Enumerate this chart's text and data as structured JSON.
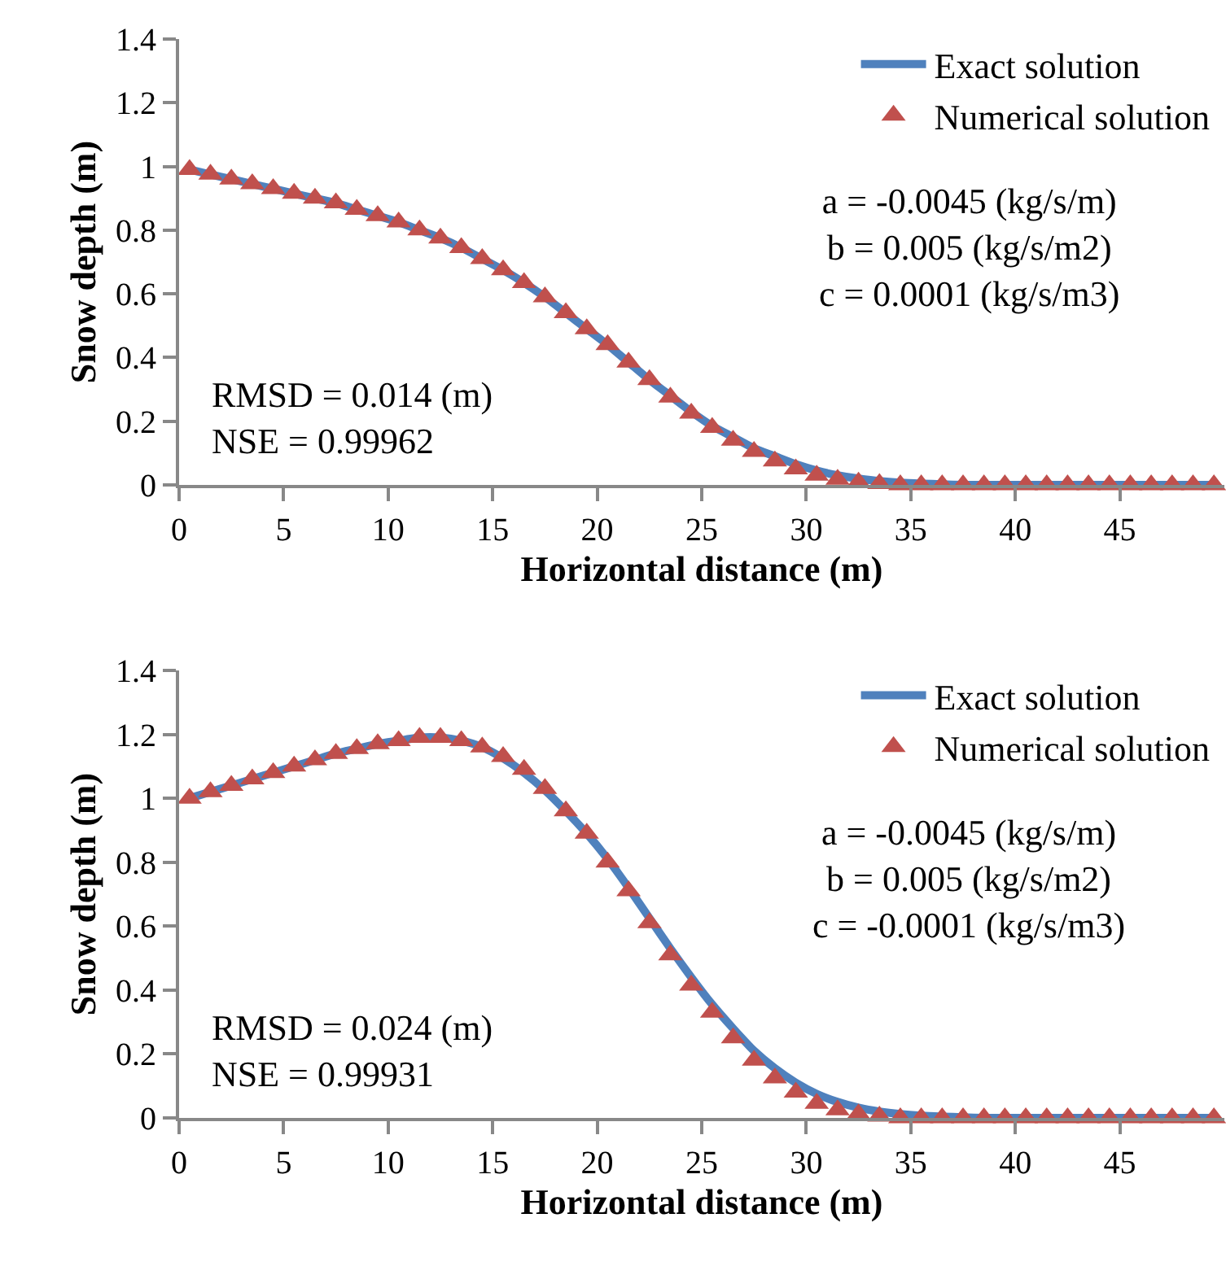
{
  "chart_data": [
    {
      "type": "line",
      "xlabel": "Horizontal distance (m)",
      "ylabel": "Snow depth (m)",
      "x": [
        0.5,
        1.5,
        2.5,
        3.5,
        4.5,
        5.5,
        6.5,
        7.5,
        8.5,
        9.5,
        10.5,
        11.5,
        12.5,
        13.5,
        14.5,
        15.5,
        16.5,
        17.5,
        18.5,
        19.5,
        20.5,
        21.5,
        22.5,
        23.5,
        24.5,
        25.5,
        26.5,
        27.5,
        28.5,
        29.5,
        30.5,
        31.5,
        32.5,
        33.5,
        34.5,
        35.5,
        36.5,
        37.5,
        38.5,
        39.5,
        40.5,
        41.5,
        42.5,
        43.5,
        44.5,
        45.5,
        46.5,
        47.5,
        48.5,
        49.5
      ],
      "xlim": [
        0,
        50
      ],
      "xticks": [
        0,
        5,
        10,
        15,
        20,
        25,
        30,
        35,
        40,
        45
      ],
      "ylim": [
        0,
        1.4
      ],
      "yticks": [
        0,
        0.2,
        0.4,
        0.6,
        0.8,
        1,
        1.2,
        1.4
      ],
      "legend": "top right",
      "series": [
        {
          "name": "Exact solution",
          "color": "#4f81bd",
          "line_style": "solid",
          "values": [
            0.99,
            0.975,
            0.96,
            0.945,
            0.93,
            0.915,
            0.9,
            0.885,
            0.865,
            0.845,
            0.825,
            0.8,
            0.775,
            0.745,
            0.71,
            0.675,
            0.635,
            0.59,
            0.54,
            0.49,
            0.44,
            0.385,
            0.33,
            0.28,
            0.23,
            0.185,
            0.15,
            0.115,
            0.09,
            0.065,
            0.045,
            0.03,
            0.02,
            0.012,
            0.007,
            0.004,
            0.002,
            0,
            0,
            0,
            0,
            0,
            0,
            0,
            0,
            0,
            0,
            0,
            0,
            0
          ]
        },
        {
          "name": "Numerical solution",
          "type": "scatter",
          "marker": "triangle",
          "color": "#c0504d",
          "values": [
            0.99,
            0.975,
            0.96,
            0.945,
            0.93,
            0.915,
            0.9,
            0.885,
            0.865,
            0.845,
            0.825,
            0.8,
            0.775,
            0.745,
            0.71,
            0.675,
            0.635,
            0.59,
            0.54,
            0.49,
            0.44,
            0.385,
            0.33,
            0.275,
            0.225,
            0.18,
            0.14,
            0.105,
            0.075,
            0.05,
            0.03,
            0.017,
            0.008,
            0.004,
            0,
            0,
            0,
            0,
            0,
            0,
            0,
            0,
            0,
            0,
            0,
            0,
            0,
            0,
            0,
            0
          ]
        }
      ],
      "annotations": [
        "a = -0.0045 (kg/s/m)\nb = 0.005 (kg/s/m2)\nc = 0.0001 (kg/s/m3)",
        "RMSD = 0.014 (m)\nNSE = 0.99962"
      ]
    },
    {
      "type": "line",
      "xlabel": "Horizontal distance (m)",
      "ylabel": "Snow depth (m)",
      "x": [
        0.5,
        1.5,
        2.5,
        3.5,
        4.5,
        5.5,
        6.5,
        7.5,
        8.5,
        9.5,
        10.5,
        11.5,
        12.5,
        13.5,
        14.5,
        15.5,
        16.5,
        17.5,
        18.5,
        19.5,
        20.5,
        21.5,
        22.5,
        23.5,
        24.5,
        25.5,
        26.5,
        27.5,
        28.5,
        29.5,
        30.5,
        31.5,
        32.5,
        33.5,
        34.5,
        35.5,
        36.5,
        37.5,
        38.5,
        39.5,
        40.5,
        41.5,
        42.5,
        43.5,
        44.5,
        45.5,
        46.5,
        47.5,
        48.5,
        49.5
      ],
      "xlim": [
        0,
        50
      ],
      "xticks": [
        0,
        5,
        10,
        15,
        20,
        25,
        30,
        35,
        40,
        45
      ],
      "ylim": [
        0,
        1.4
      ],
      "yticks": [
        0,
        0.2,
        0.4,
        0.6,
        0.8,
        1,
        1.2,
        1.4
      ],
      "legend": "top right",
      "series": [
        {
          "name": "Exact solution",
          "color": "#4f81bd",
          "line_style": "solid",
          "values": [
            1.0,
            1.02,
            1.04,
            1.06,
            1.08,
            1.1,
            1.12,
            1.14,
            1.155,
            1.17,
            1.18,
            1.19,
            1.19,
            1.18,
            1.16,
            1.125,
            1.08,
            1.025,
            0.96,
            0.89,
            0.81,
            0.72,
            0.625,
            0.53,
            0.44,
            0.355,
            0.28,
            0.21,
            0.155,
            0.11,
            0.075,
            0.05,
            0.032,
            0.02,
            0.012,
            0.007,
            0.004,
            0.002,
            0,
            0,
            0,
            0,
            0,
            0,
            0,
            0,
            0,
            0,
            0,
            0
          ]
        },
        {
          "name": "Numerical solution",
          "type": "scatter",
          "marker": "triangle",
          "color": "#c0504d",
          "values": [
            1.0,
            1.02,
            1.04,
            1.06,
            1.08,
            1.1,
            1.12,
            1.14,
            1.155,
            1.17,
            1.18,
            1.19,
            1.19,
            1.18,
            1.16,
            1.13,
            1.09,
            1.03,
            0.96,
            0.89,
            0.8,
            0.71,
            0.61,
            0.51,
            0.415,
            0.33,
            0.25,
            0.18,
            0.125,
            0.08,
            0.045,
            0.025,
            0.012,
            0.005,
            0,
            0,
            0,
            0,
            0,
            0,
            0,
            0,
            0,
            0,
            0,
            0,
            0,
            0,
            0,
            0
          ]
        }
      ],
      "annotations": [
        "a = -0.0045 (kg/s/m)\nb = 0.005 (kg/s/m2)\nc = -0.0001 (kg/s/m3)",
        "RMSD = 0.024 (m)\nNSE = 0.99931"
      ]
    }
  ]
}
